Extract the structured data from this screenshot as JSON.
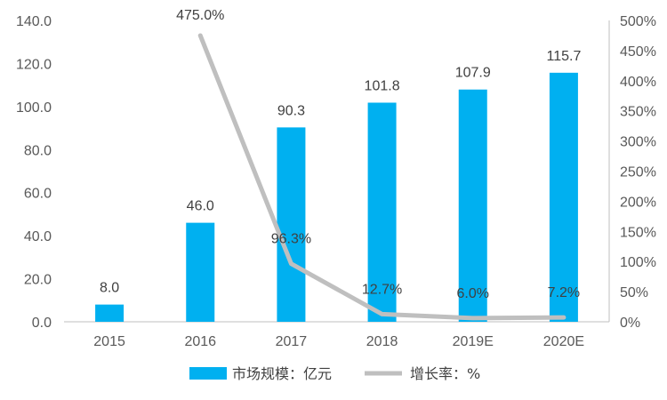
{
  "chart_data": {
    "type": "bar",
    "categories": [
      "2015",
      "2016",
      "2017",
      "2018",
      "2019E",
      "2020E"
    ],
    "series": [
      {
        "name": "市场规模：亿元",
        "type": "bar",
        "axis": "left",
        "values": [
          8.0,
          46.0,
          90.3,
          101.8,
          107.9,
          115.7
        ],
        "labels": [
          "8.0",
          "46.0",
          "90.3",
          "101.8",
          "107.9",
          "115.7"
        ]
      },
      {
        "name": "增长率：%",
        "type": "line",
        "axis": "right",
        "values": [
          null,
          475.0,
          96.3,
          12.7,
          6.0,
          7.2
        ],
        "labels": [
          "",
          "475.0%",
          "96.3%",
          "12.7%",
          "6.0%",
          "7.2%"
        ]
      }
    ],
    "y_left": {
      "lim": [
        0,
        140
      ],
      "ticks": [
        "0.0",
        "20.0",
        "40.0",
        "60.0",
        "80.0",
        "100.0",
        "120.0",
        "140.0"
      ]
    },
    "y_right": {
      "lim": [
        0,
        500
      ],
      "ticks": [
        "0%",
        "50%",
        "100%",
        "150%",
        "200%",
        "250%",
        "300%",
        "350%",
        "400%",
        "450%",
        "500%"
      ]
    },
    "legend_position": "bottom",
    "grid": false,
    "colors": {
      "bar": "#00B0F0",
      "line": "#BFBFBF",
      "axis": "#BFBFBF"
    }
  }
}
